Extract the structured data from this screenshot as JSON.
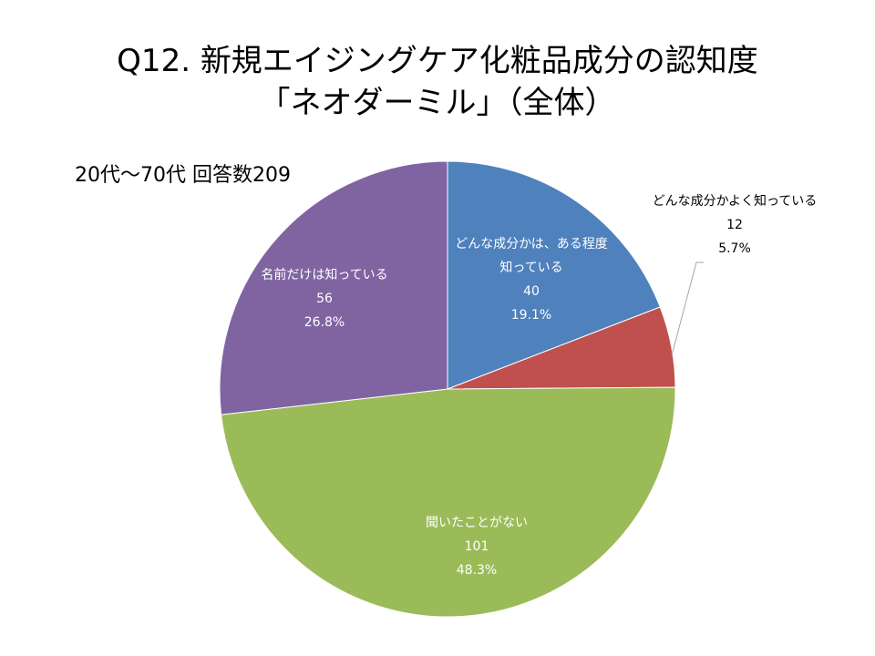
{
  "title_line1": "Q12. 新規エイジングケア化粧品成分の認知度",
  "title_line2": "「ネオダーミル」（全体）",
  "subtitle": "20代～70代  回答数209",
  "chart_data": {
    "type": "pie",
    "total": 209,
    "start": "12 o'clock, clockwise",
    "slices": [
      {
        "label_lines": [
          "どんな成分かは、ある程度",
          "知っている"
        ],
        "count": "40",
        "percent": "19.1%",
        "value": 40,
        "color": "#4F81BD",
        "label_color": "#ffffff"
      },
      {
        "label_lines": [
          "どんな成分かよく知っている"
        ],
        "count": "12",
        "percent": "5.7%",
        "value": 12,
        "color": "#C0504D",
        "label_color": "#000000"
      },
      {
        "label_lines": [
          "聞いたことがない"
        ],
        "count": "101",
        "percent": "48.3%",
        "value": 101,
        "color": "#9BBB59",
        "label_color": "#ffffff"
      },
      {
        "label_lines": [
          "名前だけは知っている"
        ],
        "count": "56",
        "percent": "26.8%",
        "value": 56,
        "color": "#8064A2",
        "label_color": "#ffffff"
      }
    ]
  }
}
